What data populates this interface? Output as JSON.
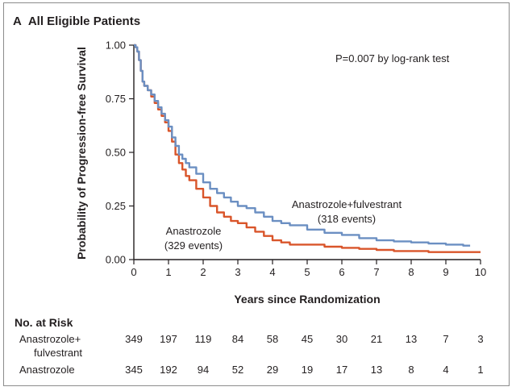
{
  "panel": {
    "letter": "A",
    "title": "All Eligible Patients"
  },
  "annotation": "P=0.007 by log-rank test",
  "colors": {
    "combo": "#6b8fc2",
    "anastrozole": "#d9552a",
    "axis": "#231f20"
  },
  "chart_data": {
    "type": "line",
    "title": "",
    "xlabel": "Years since Randomization",
    "ylabel": "Probability of Progression-free Survival",
    "xlim": [
      0,
      10
    ],
    "ylim": [
      0,
      1
    ],
    "xticks": [
      "0",
      "1",
      "2",
      "3",
      "4",
      "5",
      "6",
      "7",
      "8",
      "9",
      "10"
    ],
    "yticks": [
      "0.00",
      "0.25",
      "0.50",
      "0.75",
      "1.00"
    ],
    "grid": false,
    "series": [
      {
        "name": "Anastrozole+fulvestrant",
        "label": [
          "Anastrozole+fulvestrant",
          "(318 events)"
        ],
        "x": [
          0,
          0.05,
          0.1,
          0.15,
          0.2,
          0.25,
          0.3,
          0.4,
          0.5,
          0.6,
          0.7,
          0.8,
          0.9,
          1.0,
          1.1,
          1.2,
          1.3,
          1.4,
          1.5,
          1.6,
          1.8,
          2.0,
          2.2,
          2.4,
          2.6,
          2.8,
          3.0,
          3.25,
          3.5,
          3.75,
          4.0,
          4.25,
          4.5,
          5.0,
          5.5,
          6.0,
          6.5,
          7.0,
          7.5,
          8.0,
          8.5,
          9.0,
          9.5,
          9.7
        ],
        "y": [
          1.0,
          0.99,
          0.97,
          0.93,
          0.88,
          0.83,
          0.81,
          0.79,
          0.77,
          0.74,
          0.71,
          0.68,
          0.65,
          0.62,
          0.57,
          0.53,
          0.49,
          0.47,
          0.45,
          0.43,
          0.4,
          0.36,
          0.33,
          0.31,
          0.29,
          0.27,
          0.25,
          0.24,
          0.22,
          0.2,
          0.18,
          0.17,
          0.16,
          0.14,
          0.125,
          0.115,
          0.1,
          0.09,
          0.085,
          0.08,
          0.075,
          0.07,
          0.065,
          0.065
        ]
      },
      {
        "name": "Anastrozole",
        "label": [
          "Anastrozole",
          "(329 events)"
        ],
        "x": [
          0,
          0.05,
          0.1,
          0.15,
          0.2,
          0.25,
          0.3,
          0.4,
          0.5,
          0.6,
          0.7,
          0.8,
          0.9,
          1.0,
          1.1,
          1.2,
          1.3,
          1.4,
          1.5,
          1.6,
          1.8,
          2.0,
          2.2,
          2.4,
          2.6,
          2.8,
          3.0,
          3.25,
          3.5,
          3.75,
          4.0,
          4.25,
          4.5,
          5.0,
          5.5,
          6.0,
          6.5,
          7.0,
          7.5,
          8.0,
          8.5,
          9.0,
          9.5,
          10.0
        ],
        "y": [
          1.0,
          0.99,
          0.97,
          0.93,
          0.88,
          0.83,
          0.81,
          0.79,
          0.76,
          0.73,
          0.7,
          0.67,
          0.64,
          0.6,
          0.55,
          0.49,
          0.45,
          0.42,
          0.39,
          0.37,
          0.33,
          0.29,
          0.25,
          0.22,
          0.2,
          0.18,
          0.17,
          0.15,
          0.13,
          0.11,
          0.09,
          0.08,
          0.07,
          0.07,
          0.06,
          0.055,
          0.05,
          0.045,
          0.04,
          0.04,
          0.035,
          0.035,
          0.035,
          0.035
        ]
      }
    ]
  },
  "risk_table": {
    "title": "No. at Risk",
    "rows": [
      {
        "label": [
          "Anastrozole+",
          "fulvestrant"
        ],
        "values": [
          "349",
          "197",
          "119",
          "84",
          "58",
          "45",
          "30",
          "21",
          "13",
          "7",
          "3"
        ]
      },
      {
        "label": [
          "Anastrozole"
        ],
        "values": [
          "345",
          "192",
          "94",
          "52",
          "29",
          "19",
          "17",
          "13",
          "8",
          "4",
          "1"
        ]
      }
    ]
  }
}
